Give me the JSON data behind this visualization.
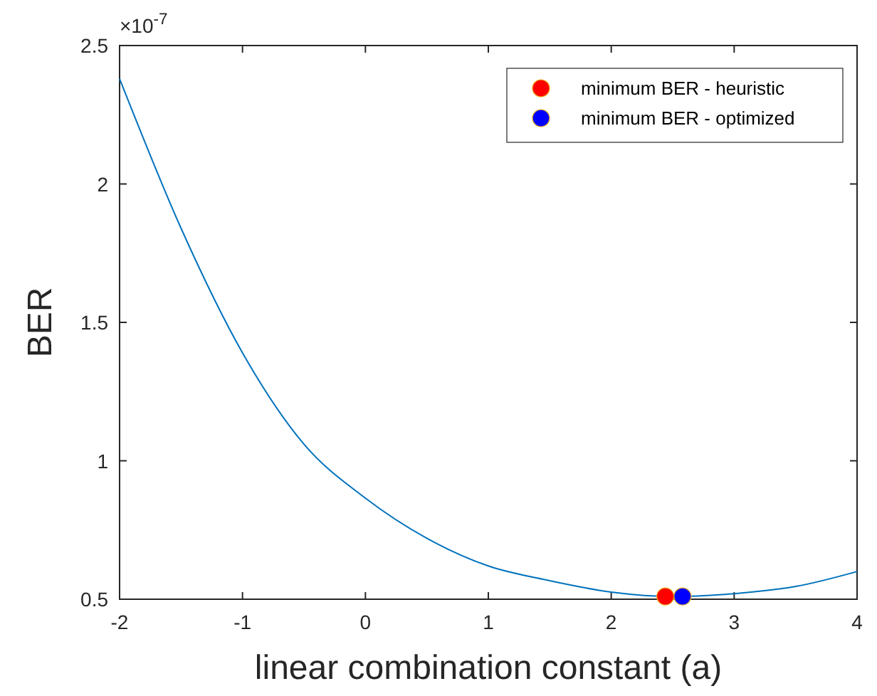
{
  "chart_data": {
    "type": "line",
    "xlabel": "linear combination constant (a)",
    "ylabel": "BER",
    "annotations": [
      "×10$^{-7}$"
    ],
    "x": [
      -2,
      -1.5,
      -1,
      -0.5,
      0,
      0.5,
      1,
      1.5,
      2,
      2.5,
      3,
      3.5,
      4
    ],
    "xlim": [
      -2,
      4
    ],
    "xticks": [
      -2,
      -1,
      0,
      1,
      2,
      3,
      4
    ],
    "ylim": [
      0.5,
      2.5
    ],
    "yticks": [
      0.5,
      1,
      1.5,
      2,
      2.5
    ],
    "grid": false,
    "legend": "top right",
    "series": [
      {
        "color": "#0072bd",
        "marker": "none",
        "values": [
          2.38,
          1.84,
          1.39,
          1.06,
          0.865,
          0.72,
          0.62,
          0.567,
          0.526,
          0.51,
          0.52,
          0.546,
          0.6
        ]
      },
      {
        "type": "scatter",
        "name": "minimum BER - heuristic",
        "color": "#ff0000",
        "marker": "circle",
        "x": [
          2.44
        ],
        "values": [
          0.51
        ]
      },
      {
        "type": "scatter",
        "name": "minimum BER - optimized",
        "color": "#0000ff",
        "marker": "circle",
        "x": [
          2.58
        ],
        "values": [
          0.51
        ]
      }
    ]
  }
}
